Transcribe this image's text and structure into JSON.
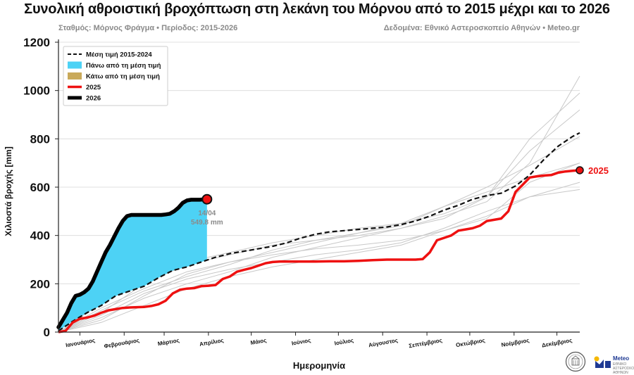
{
  "header": {
    "title": "Συνολική αθροιστική βροχόπτωση στη λεκάνη του Μόρνου από το 2015 μέχρι και το 2026",
    "subtitle_left": "Σταθμός: Μόρνος Φράγμα • Περίοδος: 2015-2026",
    "subtitle_right": "Δεδομένα: Εθνικό Αστεροσκοπείο Αθηνών • Meteo.gr"
  },
  "chart_data": {
    "type": "line",
    "title": "Συνολική αθροιστική βροχόπτωση στη λεκάνη του Μόρνου από το 2015 μέχρι και το 2026",
    "xlabel": "Ημερομηνία",
    "ylabel": "Χιλιοστά βροχής [mm]",
    "ylim": [
      0,
      1200
    ],
    "xlim_days": [
      0,
      365
    ],
    "yticks": [
      0,
      200,
      400,
      600,
      800,
      1000,
      1200
    ],
    "month_labels": [
      "Ιανουάριος",
      "Φεβρουάριος",
      "Μάρτιος",
      "Απρίλιος",
      "Μάιος",
      "Ιούνιος",
      "Ιούλιος",
      "Αύγουστος",
      "Σεπτέμβριος",
      "Οκτώβριος",
      "Νοέμβριος",
      "Δεκέμβριος"
    ],
    "month_tick_days": [
      15,
      46,
      74,
      105,
      135,
      166,
      196,
      227,
      258,
      288,
      319,
      349
    ],
    "grid": true,
    "legend_position": "top-left",
    "legend": [
      {
        "label": "Μέση τιμή 2015-2024",
        "style": "dashed",
        "color": "#111111"
      },
      {
        "label": "Πάνω από τη μέση τιμή",
        "style": "patch",
        "color": "#4dd2f5"
      },
      {
        "label": "Κάτω από τη μέση τιμή",
        "style": "patch",
        "color": "#c9a95a"
      },
      {
        "label": "2025",
        "style": "line",
        "color": "#ee1111"
      },
      {
        "label": "2026",
        "style": "line",
        "color": "#000000"
      }
    ],
    "series": [
      {
        "name": "Μέση τιμή 2015-2024",
        "x": [
          0,
          10,
          20,
          30,
          40,
          50,
          60,
          70,
          80,
          90,
          100,
          110,
          120,
          130,
          140,
          150,
          160,
          170,
          180,
          190,
          200,
          210,
          220,
          230,
          240,
          250,
          260,
          270,
          280,
          290,
          300,
          310,
          320,
          330,
          340,
          350,
          360,
          365
        ],
        "values": [
          5,
          45,
          80,
          110,
          150,
          170,
          190,
          225,
          255,
          270,
          290,
          310,
          325,
          335,
          345,
          355,
          370,
          390,
          405,
          415,
          420,
          425,
          430,
          435,
          445,
          460,
          480,
          505,
          525,
          550,
          565,
          575,
          605,
          650,
          715,
          770,
          810,
          825
        ]
      },
      {
        "name": "2025",
        "x": [
          0,
          5,
          10,
          15,
          20,
          25,
          30,
          35,
          40,
          45,
          50,
          55,
          60,
          65,
          70,
          75,
          80,
          85,
          90,
          95,
          100,
          105,
          110,
          115,
          120,
          125,
          130,
          135,
          140,
          145,
          150,
          155,
          160,
          165,
          170,
          175,
          180,
          190,
          200,
          210,
          220,
          230,
          240,
          245,
          250,
          255,
          260,
          265,
          270,
          275,
          280,
          285,
          290,
          295,
          300,
          305,
          310,
          315,
          320,
          325,
          330,
          335,
          340,
          345,
          350,
          355,
          360,
          365
        ],
        "values": [
          0,
          5,
          40,
          55,
          60,
          68,
          80,
          90,
          95,
          100,
          102,
          103,
          104,
          108,
          115,
          130,
          160,
          175,
          180,
          182,
          190,
          192,
          195,
          220,
          230,
          250,
          258,
          265,
          275,
          285,
          290,
          292,
          292,
          292,
          292,
          292,
          292,
          293,
          293,
          295,
          298,
          300,
          300,
          300,
          300,
          302,
          330,
          380,
          390,
          400,
          420,
          425,
          430,
          440,
          460,
          465,
          470,
          500,
          580,
          610,
          640,
          645,
          648,
          650,
          660,
          665,
          668,
          670
        ]
      },
      {
        "name": "2026",
        "x": [
          0,
          3,
          6,
          9,
          12,
          15,
          18,
          21,
          24,
          27,
          30,
          33,
          36,
          39,
          42,
          45,
          48,
          51,
          54,
          57,
          60,
          63,
          66,
          69,
          72,
          75,
          78,
          81,
          84,
          87,
          90,
          93,
          96,
          99,
          101,
          103,
          104
        ],
        "values": [
          20,
          50,
          80,
          120,
          150,
          155,
          165,
          180,
          210,
          250,
          290,
          330,
          360,
          395,
          430,
          460,
          480,
          485,
          485,
          485,
          485,
          485,
          485,
          485,
          485,
          487,
          490,
          500,
          515,
          535,
          545,
          548,
          548,
          548,
          549,
          549,
          549.8
        ]
      }
    ],
    "background_series": [
      {
        "name": "2015",
        "x": [
          0,
          30,
          60,
          90,
          120,
          150,
          180,
          210,
          240,
          270,
          300,
          330,
          365
        ],
        "values": [
          0,
          60,
          140,
          200,
          250,
          310,
          350,
          390,
          430,
          480,
          540,
          700,
          1060
        ]
      },
      {
        "name": "2016",
        "x": [
          0,
          30,
          60,
          90,
          120,
          150,
          180,
          210,
          240,
          270,
          300,
          330,
          365
        ],
        "values": [
          0,
          120,
          230,
          290,
          330,
          370,
          400,
          430,
          450,
          490,
          560,
          800,
          990
        ]
      },
      {
        "name": "2017",
        "x": [
          0,
          30,
          60,
          90,
          120,
          150,
          180,
          210,
          240,
          270,
          300,
          330,
          365
        ],
        "values": [
          0,
          80,
          200,
          280,
          320,
          360,
          380,
          400,
          430,
          470,
          560,
          750,
          920
        ]
      },
      {
        "name": "2018",
        "x": [
          0,
          30,
          60,
          90,
          120,
          150,
          180,
          210,
          240,
          270,
          300,
          330,
          365
        ],
        "values": [
          0,
          50,
          150,
          240,
          290,
          330,
          370,
          410,
          440,
          520,
          600,
          690,
          810
        ]
      },
      {
        "name": "2019",
        "x": [
          0,
          30,
          60,
          90,
          120,
          150,
          180,
          210,
          240,
          270,
          300,
          330,
          365
        ],
        "values": [
          0,
          100,
          180,
          250,
          290,
          320,
          345,
          360,
          380,
          420,
          470,
          620,
          700
        ]
      },
      {
        "name": "2020",
        "x": [
          0,
          30,
          60,
          90,
          120,
          150,
          180,
          210,
          240,
          270,
          300,
          330,
          365
        ],
        "values": [
          0,
          40,
          110,
          180,
          230,
          270,
          300,
          330,
          360,
          420,
          480,
          560,
          620
        ]
      },
      {
        "name": "2021",
        "x": [
          0,
          30,
          60,
          90,
          120,
          150,
          180,
          210,
          240,
          270,
          300,
          330,
          365
        ],
        "values": [
          0,
          90,
          170,
          230,
          280,
          340,
          380,
          410,
          450,
          520,
          580,
          640,
          700
        ]
      },
      {
        "name": "2022",
        "x": [
          0,
          30,
          60,
          90,
          120,
          150,
          180,
          210,
          240,
          270,
          300,
          330,
          365
        ],
        "values": [
          0,
          70,
          160,
          220,
          260,
          290,
          320,
          340,
          370,
          430,
          500,
          560,
          590
        ]
      }
    ],
    "annotations": [
      {
        "label": "14/04",
        "x": 104,
        "y": 549.8
      },
      {
        "label": "549.8 mm",
        "x": 104,
        "y": 549.8
      },
      {
        "label": "2025",
        "x": 365,
        "y": 670
      }
    ]
  },
  "colors": {
    "above_fill": "#4dd2f5",
    "below_fill": "#c9a95a",
    "line_2025": "#ee1111",
    "line_2026": "#000000",
    "mean_line": "#111111",
    "background_lines": "#c8c8c8",
    "grid": "#d8d8d8"
  },
  "branding": {
    "meteo_name": "Meteo",
    "meteo_tagline": "ΕΘΝΙΚΟ ΑΣΤΕΡΟΣΚΟΠΕΙΟ ΑΘΗΝΩΝ"
  }
}
